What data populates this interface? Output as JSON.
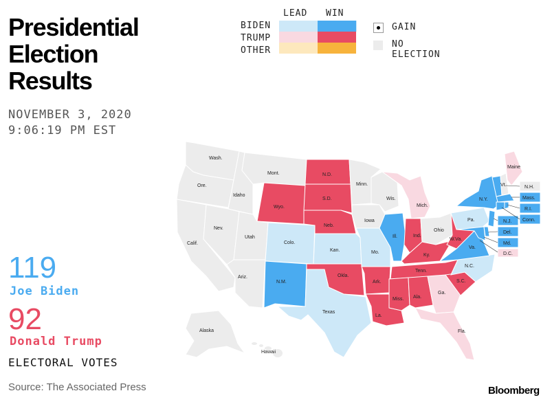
{
  "title": "Presidential Election Results",
  "date_line1": "NOVEMBER 3, 2020",
  "date_line2": "9:06:19 PM EST",
  "legend": {
    "col_lead": "LEAD",
    "col_win": "WIN",
    "rows": [
      {
        "label": "BIDEN",
        "lead_color": "#cde8f8",
        "win_color": "#4aabf0"
      },
      {
        "label": "TRUMP",
        "lead_color": "#f9d9e1",
        "win_color": "#e84b63"
      },
      {
        "label": "OTHER",
        "lead_color": "#fde8bd",
        "win_color": "#f7b33c"
      }
    ],
    "gain_label": "GAIN",
    "no_election_label": "NO ELECTION"
  },
  "colors": {
    "biden_win": "#4aabf0",
    "biden_lead": "#cde8f8",
    "trump_win": "#e84b63",
    "trump_lead": "#f9d9e1",
    "no_result": "#ececec"
  },
  "biden": {
    "votes": "119",
    "name": "Joe Biden",
    "color": "#4aabf0"
  },
  "trump": {
    "votes": "92",
    "name": "Donald Trump",
    "color": "#e84b63"
  },
  "electoral_votes_label": "ELECTORAL VOTES",
  "source": "Source: The Associated Press",
  "brand": "Bloomberg",
  "states": {
    "wash": "Wash.",
    "ore": "Ore.",
    "calif": "Calif.",
    "idaho": "Idaho",
    "nev": "Nev.",
    "mont": "Mont.",
    "wyo": "Wyo.",
    "utah": "Utah",
    "ariz": "Ariz.",
    "colo": "Colo.",
    "nm": "N.M.",
    "nd": "N.D.",
    "sd": "S.D.",
    "neb": "Neb.",
    "kan": "Kan.",
    "okla": "Okla.",
    "texas": "Texas",
    "minn": "Minn.",
    "iowa": "Iowa",
    "mo": "Mo.",
    "ark": "Ark.",
    "la": "La.",
    "wis": "Wis.",
    "ill": "Ill.",
    "mich": "Mich.",
    "ind": "Ind.",
    "ohio": "Ohio",
    "ky": "Ky.",
    "tenn": "Tenn.",
    "miss": "Miss.",
    "ala": "Ala.",
    "ga": "Ga.",
    "fla": "Fla.",
    "sc": "S.C.",
    "nc": "N.C.",
    "va": "Va.",
    "wva": "W.Va.",
    "pa": "Pa.",
    "ny": "N.Y.",
    "vt": "Vt.",
    "maine": "Maine",
    "nh": "N.H.",
    "mass": "Mass.",
    "ri": "R.I.",
    "conn": "Conn.",
    "nj": "N.J.",
    "del": "Del.",
    "md": "Md.",
    "dc": "D.C.",
    "alaska": "Alaska",
    "hawaii": "Hawaii"
  }
}
